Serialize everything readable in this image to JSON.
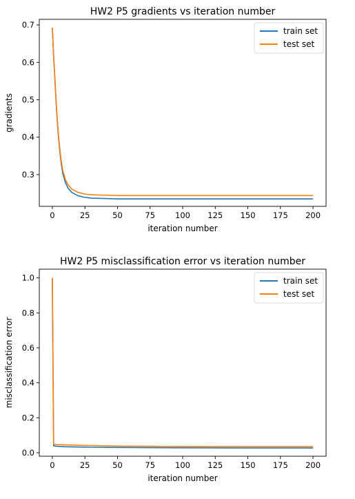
{
  "chart_data": [
    {
      "type": "line",
      "title": "HW2 P5 gradients vs iteration number",
      "xlabel": "iteration number",
      "ylabel": "gradients",
      "xlim": [
        -10,
        210
      ],
      "ylim": [
        0.215,
        0.715
      ],
      "xticks": [
        0,
        25,
        50,
        75,
        100,
        125,
        150,
        175,
        200
      ],
      "yticks": [
        0.3,
        0.4,
        0.5,
        0.6,
        0.7
      ],
      "ytick_labels": [
        "0.3",
        "0.4",
        "0.5",
        "0.6",
        "0.7"
      ],
      "grid": false,
      "legend": "top-right",
      "series": [
        {
          "name": "train set",
          "color": "#1f77b4",
          "x": [
            0,
            1,
            2,
            3,
            4,
            5,
            6,
            7,
            8,
            10,
            12,
            15,
            20,
            25,
            30,
            40,
            50,
            75,
            100,
            125,
            150,
            175,
            200
          ],
          "y": [
            0.693,
            0.615,
            0.553,
            0.487,
            0.432,
            0.389,
            0.354,
            0.325,
            0.303,
            0.279,
            0.264,
            0.252,
            0.243,
            0.239,
            0.237,
            0.236,
            0.235,
            0.235,
            0.235,
            0.235,
            0.235,
            0.235,
            0.235
          ]
        },
        {
          "name": "test set",
          "color": "#ff7f0e",
          "x": [
            0,
            1,
            2,
            3,
            4,
            5,
            6,
            7,
            8,
            10,
            12,
            15,
            20,
            25,
            30,
            40,
            50,
            75,
            100,
            125,
            150,
            175,
            200
          ],
          "y": [
            0.693,
            0.617,
            0.556,
            0.491,
            0.437,
            0.395,
            0.361,
            0.333,
            0.311,
            0.287,
            0.273,
            0.261,
            0.252,
            0.248,
            0.246,
            0.245,
            0.244,
            0.244,
            0.244,
            0.244,
            0.244,
            0.244,
            0.244
          ]
        }
      ]
    },
    {
      "type": "line",
      "title": "HW2 P5 misclassification error vs iteration number",
      "xlabel": "iteration number",
      "ylabel": "misclassification error",
      "xlim": [
        -10,
        210
      ],
      "ylim": [
        -0.02,
        1.05
      ],
      "xticks": [
        0,
        25,
        50,
        75,
        100,
        125,
        150,
        175,
        200
      ],
      "yticks": [
        0.0,
        0.2,
        0.4,
        0.6,
        0.8,
        1.0
      ],
      "ytick_labels": [
        "0.0",
        "0.2",
        "0.4",
        "0.6",
        "0.8",
        "1.0"
      ],
      "grid": false,
      "legend": "top-right",
      "series": [
        {
          "name": "train set",
          "color": "#1f77b4",
          "x": [
            0,
            1,
            2,
            5,
            10,
            25,
            50,
            100,
            150,
            200
          ],
          "y": [
            1.0,
            0.04,
            0.038,
            0.036,
            0.034,
            0.032,
            0.03,
            0.028,
            0.027,
            0.027
          ]
        },
        {
          "name": "test set",
          "color": "#ff7f0e",
          "x": [
            0,
            1,
            2,
            5,
            10,
            25,
            50,
            100,
            150,
            200
          ],
          "y": [
            1.0,
            0.048,
            0.047,
            0.046,
            0.045,
            0.042,
            0.038,
            0.036,
            0.035,
            0.035
          ]
        }
      ]
    }
  ]
}
